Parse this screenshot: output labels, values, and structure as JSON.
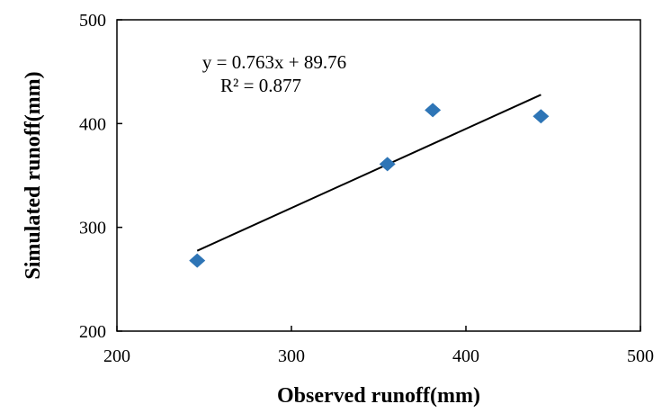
{
  "chart_data": {
    "type": "scatter",
    "title": "",
    "xlabel": "Observed runoff(mm)",
    "ylabel": "Simulated runoff(mm)",
    "xlim": [
      200,
      500
    ],
    "ylim": [
      200,
      500
    ],
    "xticks": [
      "200",
      "300",
      "400",
      "500"
    ],
    "yticks": [
      "200",
      "300",
      "400",
      "500"
    ],
    "grid": false,
    "legend": "none",
    "series": [
      {
        "marker": "diamond",
        "color": "#2e75b6",
        "points": [
          {
            "x": 246,
            "y": 268
          },
          {
            "x": 355,
            "y": 361
          },
          {
            "x": 381,
            "y": 413
          },
          {
            "x": 443,
            "y": 407
          }
        ]
      }
    ],
    "trendline": {
      "type": "linear",
      "slope": 0.763,
      "intercept": 89.76,
      "x_range": [
        246,
        443
      ],
      "color": "#000000",
      "equation_label": "y = 0.763x + 89.76",
      "r2_label": "R² = 0.877"
    }
  }
}
